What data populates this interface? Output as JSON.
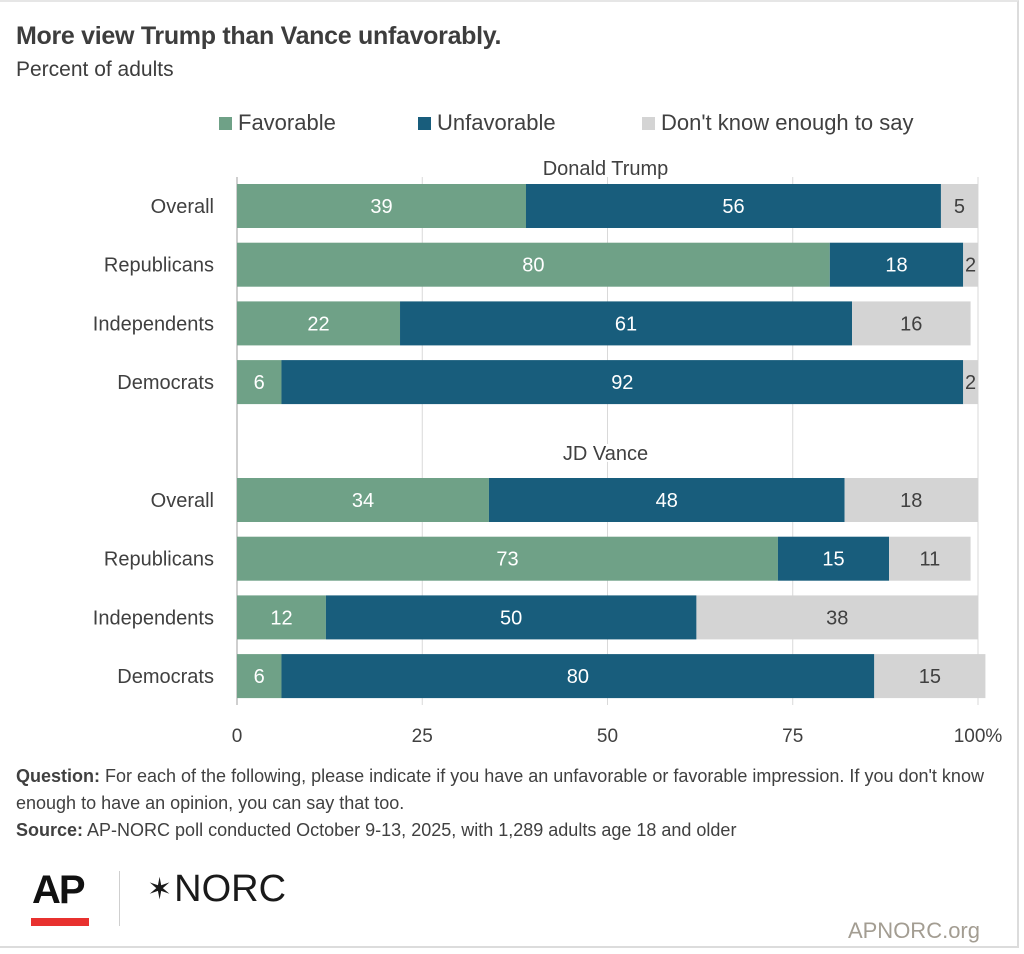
{
  "title": "More view Trump than Vance unfavorably.",
  "subtitle": "Percent of adults",
  "colors": {
    "favorable": "#6fa187",
    "unfavorable": "#185d7c",
    "dont_know": "#d4d4d4",
    "grid": "#d9d9d9",
    "axis_text": "#404040"
  },
  "legend": [
    {
      "label": "Favorable",
      "color": "#6fa187"
    },
    {
      "label": "Unfavorable",
      "color": "#185d7c"
    },
    {
      "label": "Don't know enough to say",
      "color": "#d4d4d4"
    }
  ],
  "chart_data": {
    "type": "bar",
    "orientation": "horizontal",
    "stacked": true,
    "title": "More view Trump than Vance unfavorably.",
    "subtitle": "Percent of adults",
    "xlabel": "",
    "ylabel": "",
    "xlim": [
      0,
      100
    ],
    "x_ticks": [
      "0",
      "25",
      "50",
      "75",
      "100%"
    ],
    "x_tick_values": [
      0,
      25,
      50,
      75,
      100
    ],
    "grid": true,
    "legend_position": "top-right",
    "series_names": [
      "Favorable",
      "Unfavorable",
      "Don't know enough to say"
    ],
    "groups": [
      {
        "name": "Donald Trump",
        "categories": [
          "Overall",
          "Republicans",
          "Independents",
          "Democrats"
        ],
        "series": [
          {
            "name": "Favorable",
            "values": [
              39,
              80,
              22,
              6
            ]
          },
          {
            "name": "Unfavorable",
            "values": [
              56,
              18,
              61,
              92
            ]
          },
          {
            "name": "Don't know enough to say",
            "values": [
              5,
              2,
              16,
              2
            ]
          }
        ]
      },
      {
        "name": "JD Vance",
        "categories": [
          "Overall",
          "Republicans",
          "Independents",
          "Democrats"
        ],
        "series": [
          {
            "name": "Favorable",
            "values": [
              34,
              73,
              12,
              6
            ]
          },
          {
            "name": "Unfavorable",
            "values": [
              48,
              15,
              50,
              80
            ]
          },
          {
            "name": "Don't know enough to say",
            "values": [
              18,
              11,
              38,
              15
            ]
          }
        ]
      }
    ]
  },
  "footer": {
    "question_label": "Question:",
    "question_text": " For each of the following, please indicate if you have an unfavorable or favorable impression. If you don't know enough to have an opinion, you can say that too.",
    "source_label": "Source:",
    "source_text": " AP-NORC poll conducted October 9-13, 2025, with 1,289 adults age 18 and older"
  },
  "logos": {
    "ap": "AP",
    "norc": "NORC",
    "norc_star": "✶",
    "site": "APNORC.org"
  }
}
